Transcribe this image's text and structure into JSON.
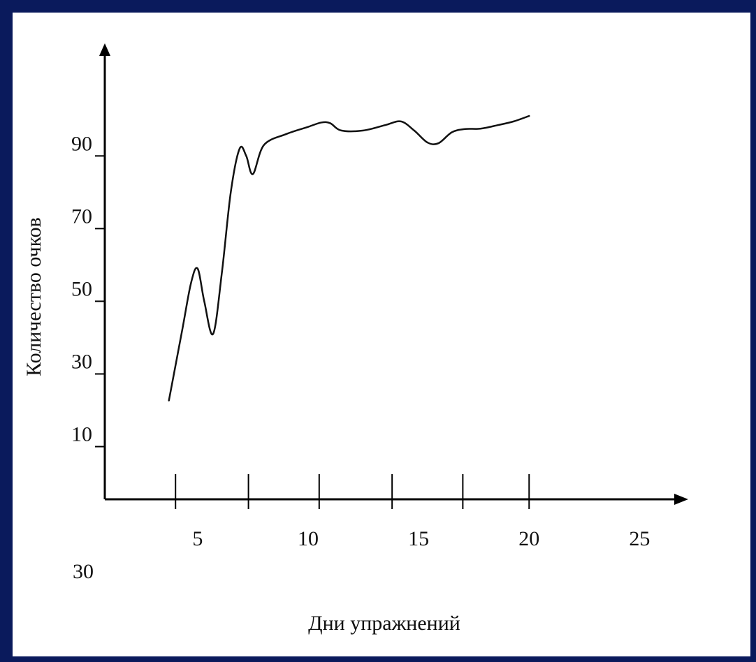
{
  "chart_data": {
    "type": "line",
    "title": "",
    "xlabel": "Дни упражнений",
    "ylabel": "Количество очков",
    "x_ticks": [
      5,
      10,
      15,
      20,
      25
    ],
    "x_tick_labels": [
      "5",
      "10",
      "15",
      "20",
      "25"
    ],
    "y_ticks": [
      10,
      30,
      50,
      70,
      90
    ],
    "y_tick_labels": [
      "10",
      "30",
      "50",
      "70",
      "90"
    ],
    "extra_label": "30",
    "xlim": [
      0.8,
      27.2
    ],
    "ylim": [
      -4.5,
      121
    ],
    "grid": false,
    "series": [
      {
        "x": [
          3.7,
          4.3,
          4.7,
          5.0,
          5.3,
          5.7,
          6.1,
          6.5,
          6.9,
          7.2,
          7.5,
          8.0,
          9.0,
          10.0,
          10.6,
          11.0,
          11.5,
          12.5,
          13.5,
          14.2,
          14.8,
          15.4,
          15.9,
          16.5,
          17.1,
          17.8,
          18.6,
          19.3,
          20.0
        ],
        "y": [
          22.7,
          42,
          55,
          59,
          50,
          41,
          58,
          80,
          92,
          90,
          85,
          93,
          96,
          98,
          99.2,
          99,
          97,
          97,
          98.5,
          99.5,
          97,
          93.7,
          93.5,
          96.5,
          97.4,
          97.5,
          98.5,
          99.5,
          101
        ]
      }
    ],
    "colors": {
      "frame": "#0a1a5c",
      "background": "#ffffff",
      "line": "#111111"
    }
  }
}
